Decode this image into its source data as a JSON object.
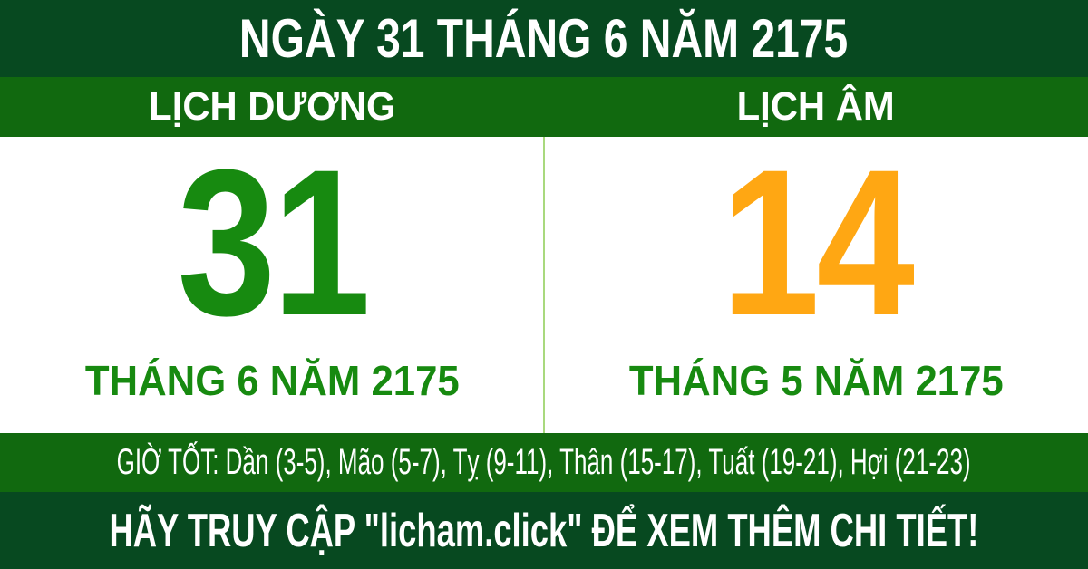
{
  "header": {
    "title": "NGÀY 31 THÁNG 6 NĂM 2175"
  },
  "columns": {
    "solar": {
      "label": "LỊCH DƯƠNG",
      "day": "31",
      "month_year": "THÁNG 6 NĂM 2175",
      "day_color": "#178a10"
    },
    "lunar": {
      "label": "LỊCH ÂM",
      "day": "14",
      "month_year": "THÁNG 5 NĂM 2175",
      "day_color": "#ffa713"
    }
  },
  "good_hours": {
    "text": "GIỜ TỐT: Dần (3-5), Mão (5-7), Tỵ (9-11), Thân (15-17), Tuất (19-21), Hợi (21-23)"
  },
  "footer": {
    "text": "HÃY TRUY CẬP \"licham.click\" ĐỂ XEM THÊM CHI TIẾT!"
  },
  "colors": {
    "dark_green": "#074920",
    "mid_green": "#11690f",
    "day_green": "#178a10",
    "day_orange": "#ffa713",
    "divider_green": "#a9d97e",
    "background": "#ffffff",
    "text_white": "#ffffff"
  }
}
